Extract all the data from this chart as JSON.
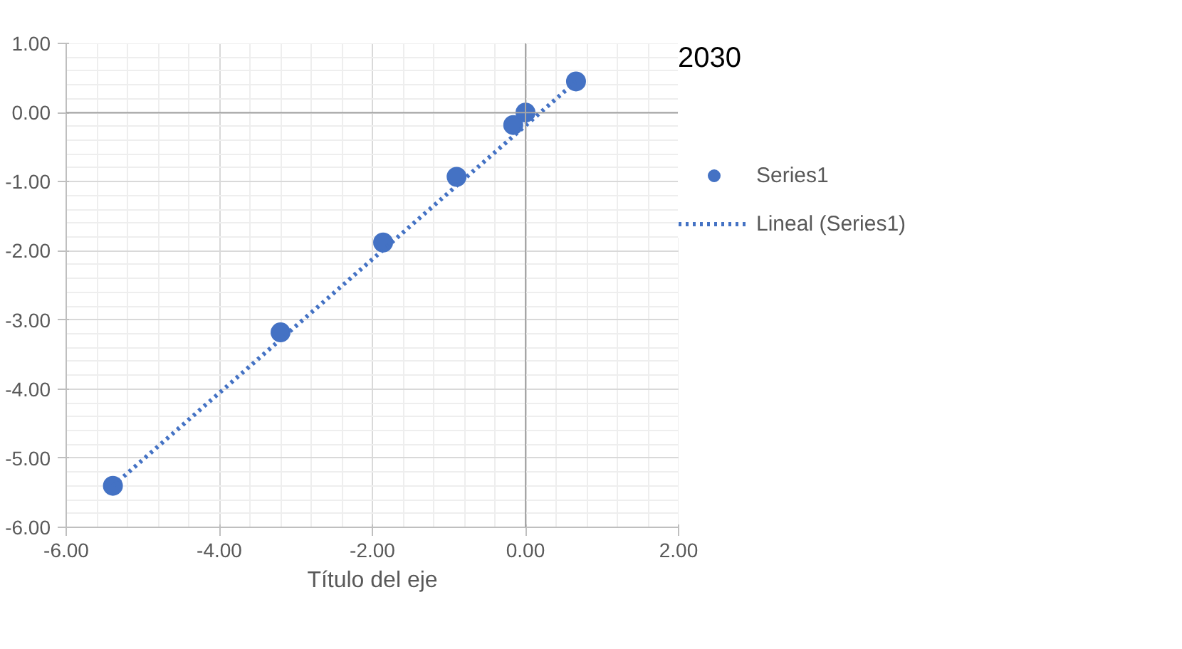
{
  "chart_data": {
    "type": "scatter",
    "title": "2030",
    "xlabel": "Título del eje",
    "x": [
      0.66,
      0.0,
      -0.16,
      -0.9,
      -1.86,
      -3.2,
      -5.39
    ],
    "series": [
      {
        "name": "Series1",
        "color": "#4472c4",
        "values": [
          0.45,
          0.0,
          -0.18,
          -0.93,
          -1.88,
          -3.18,
          -5.4
        ],
        "marker": "circle"
      },
      {
        "name": "Lineal (Series1)",
        "type": "line",
        "color": "#4472c4",
        "line_style": "dotted",
        "x": [
          -5.39,
          0.66
        ],
        "values": [
          -5.4,
          0.45
        ]
      }
    ],
    "xlim": [
      -6,
      2
    ],
    "ylim": [
      -6,
      1
    ],
    "xticks": [
      {
        "value": -6,
        "label": "-6.00"
      },
      {
        "value": -4,
        "label": "-4.00"
      },
      {
        "value": -2,
        "label": "-2.00"
      },
      {
        "value": 0,
        "label": "0.00"
      },
      {
        "value": 2,
        "label": "2.00"
      }
    ],
    "yticks": [
      {
        "value": -6,
        "label": "-6.00"
      },
      {
        "value": -5,
        "label": "-5.00"
      },
      {
        "value": -4,
        "label": "-4.00"
      },
      {
        "value": -3,
        "label": "-3.00"
      },
      {
        "value": -2,
        "label": "-2.00"
      },
      {
        "value": -1,
        "label": "-1.00"
      },
      {
        "value": 0,
        "label": "0.00"
      },
      {
        "value": 1,
        "label": "1.00"
      }
    ],
    "grid": true,
    "legend": "right"
  }
}
